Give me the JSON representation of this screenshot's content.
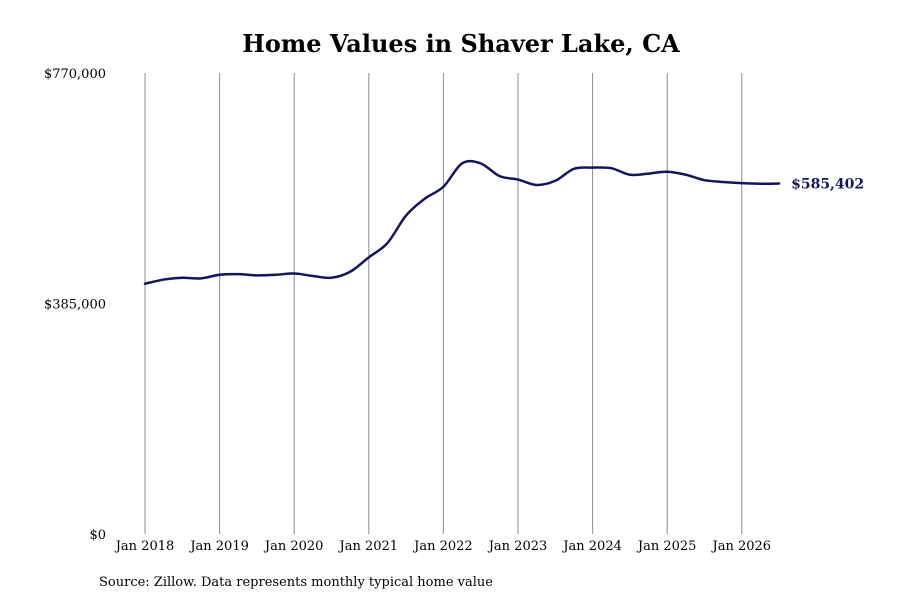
{
  "chart_data": {
    "type": "line",
    "title": "Home Values in Shaver Lake, CA",
    "xlabel": "",
    "ylabel": "",
    "ylim": [
      0,
      770000
    ],
    "xlim": [
      "2018-01",
      "2026-07"
    ],
    "y_ticks": [
      {
        "value": 0,
        "label": "$0"
      },
      {
        "value": 385000,
        "label": "$385,000"
      },
      {
        "value": 770000,
        "label": "$770,000"
      }
    ],
    "x_ticks": [
      {
        "value": "2018-01",
        "label": "Jan 2018"
      },
      {
        "value": "2019-01",
        "label": "Jan 2019"
      },
      {
        "value": "2020-01",
        "label": "Jan 2020"
      },
      {
        "value": "2021-01",
        "label": "Jan 2021"
      },
      {
        "value": "2022-01",
        "label": "Jan 2022"
      },
      {
        "value": "2023-01",
        "label": "Jan 2023"
      },
      {
        "value": "2024-01",
        "label": "Jan 2024"
      },
      {
        "value": "2025-01",
        "label": "Jan 2025"
      },
      {
        "value": "2026-01",
        "label": "Jan 2026"
      }
    ],
    "grid": "vertical",
    "series": [
      {
        "color": "#15145e",
        "end_label": "$585,402",
        "points": [
          [
            "2018-01",
            418000
          ],
          [
            "2018-04",
            425000
          ],
          [
            "2018-07",
            428000
          ],
          [
            "2018-10",
            427000
          ],
          [
            "2019-01",
            433000
          ],
          [
            "2019-04",
            434000
          ],
          [
            "2019-07",
            432000
          ],
          [
            "2019-10",
            433000
          ],
          [
            "2020-01",
            435000
          ],
          [
            "2020-04",
            431000
          ],
          [
            "2020-07",
            428000
          ],
          [
            "2020-10",
            438000
          ],
          [
            "2021-01",
            462000
          ],
          [
            "2021-04",
            486000
          ],
          [
            "2021-07",
            532000
          ],
          [
            "2021-10",
            560000
          ],
          [
            "2022-01",
            580000
          ],
          [
            "2022-04",
            619000
          ],
          [
            "2022-07",
            619000
          ],
          [
            "2022-10",
            598000
          ],
          [
            "2023-01",
            592000
          ],
          [
            "2023-04",
            583000
          ],
          [
            "2023-07",
            590000
          ],
          [
            "2023-10",
            610000
          ],
          [
            "2024-01",
            612000
          ],
          [
            "2024-04",
            611000
          ],
          [
            "2024-07",
            600000
          ],
          [
            "2024-10",
            602000
          ],
          [
            "2025-01",
            605000
          ],
          [
            "2025-04",
            600000
          ],
          [
            "2025-07",
            591000
          ],
          [
            "2025-10",
            588000
          ],
          [
            "2026-01",
            586000
          ],
          [
            "2026-04",
            585000
          ],
          [
            "2026-07",
            585402
          ]
        ]
      }
    ]
  },
  "footer": {
    "source": "Source: Zillow. Data represents monthly typical home value"
  }
}
